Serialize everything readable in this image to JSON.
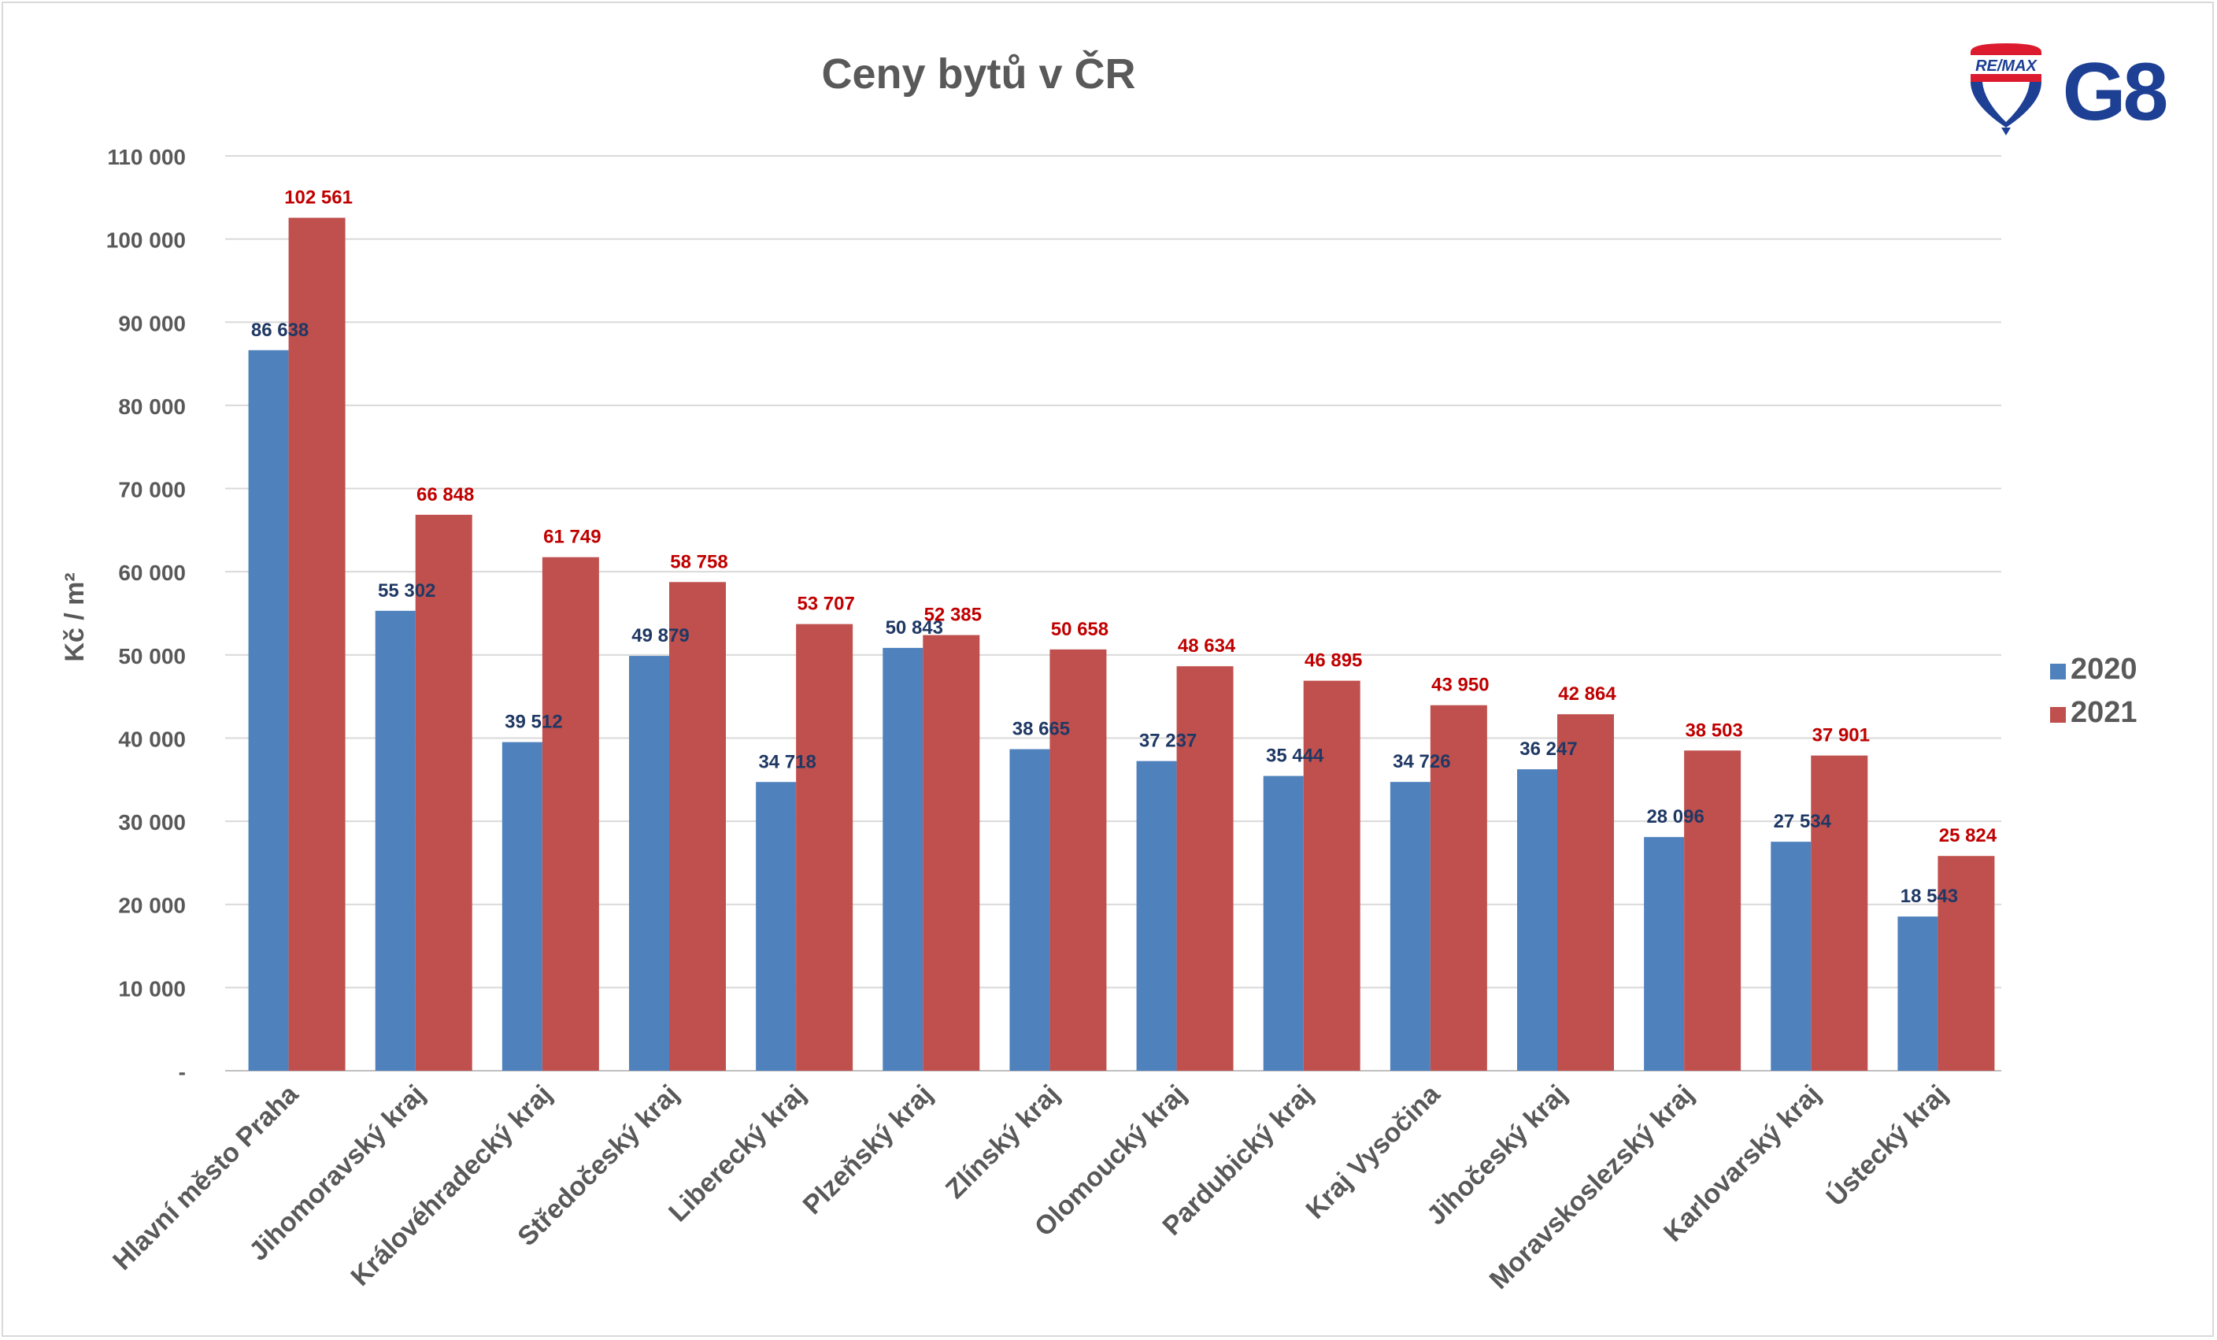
{
  "logo": {
    "brand_text": "RE/MAX",
    "office_text": "G8",
    "brand_blue": "#1d3f94",
    "brand_red": "#dc1c2e"
  },
  "chart_data": {
    "type": "bar",
    "title": "Ceny bytů v ČR",
    "xlabel": "",
    "ylabel": "Kč / m²",
    "ylim": [
      0,
      110000
    ],
    "ytick_step": 10000,
    "ytick_labels": [
      "-",
      "10 000",
      "20 000",
      "30 000",
      "40 000",
      "50 000",
      "60 000",
      "70 000",
      "80 000",
      "90 000",
      "100 000",
      "110 000"
    ],
    "grid": true,
    "legend_position": "right",
    "categories": [
      "Hlavní město Praha",
      "Jihomoravský kraj",
      "Královéhradecký kraj",
      "Středočeský kraj",
      "Liberecký kraj",
      "Plzeňský kraj",
      "Zlínský kraj",
      "Olomoucký kraj",
      "Pardubický kraj",
      "Kraj Vysočina",
      "Jihočeský kraj",
      "Moravskoslezský kraj",
      "Karlovarský kraj",
      "Ústecký kraj"
    ],
    "series": [
      {
        "name": "2020",
        "color": "#4f81bd",
        "label_color": "#1f3864",
        "values": [
          86638,
          55302,
          39512,
          49879,
          34718,
          50843,
          38665,
          37237,
          35444,
          34726,
          36247,
          28096,
          27534,
          18543
        ],
        "value_labels": [
          "86 638",
          "55 302",
          "39 512",
          "49 879",
          "34 718",
          "50 843",
          "38 665",
          "37 237",
          "35 444",
          "34 726",
          "36 247",
          "28 096",
          "27 534",
          "18 543"
        ]
      },
      {
        "name": "2021",
        "color": "#c0504d",
        "label_color": "#c00000",
        "values": [
          102561,
          66848,
          61749,
          58758,
          53707,
          52385,
          50658,
          48634,
          46895,
          43950,
          42864,
          38503,
          37901,
          25824
        ],
        "value_labels": [
          "102 561",
          "66 848",
          "61 749",
          "58 758",
          "53 707",
          "52 385",
          "50 658",
          "48 634",
          "46 895",
          "43 950",
          "42 864",
          "38 503",
          "37 901",
          "25 824"
        ]
      }
    ]
  }
}
